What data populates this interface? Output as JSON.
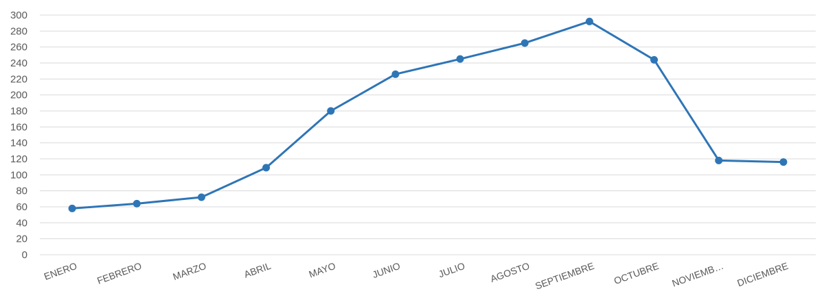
{
  "chart_data": {
    "type": "line",
    "title": "",
    "xlabel": "",
    "ylabel": "",
    "categories": [
      "ENERO",
      "FEBRERO",
      "MARZO",
      "ABRIL",
      "MAYO",
      "JUNIO",
      "JULIO",
      "AGOSTO",
      "SEPTIEMBRE",
      "OCTUBRE",
      "NOVIEMB…",
      "DICIEMBRE"
    ],
    "series": [
      {
        "values": [
          58,
          64,
          72,
          109,
          180,
          226,
          245,
          265,
          292,
          244,
          118,
          116
        ]
      }
    ],
    "ylim": [
      0,
      300
    ],
    "yticks": [
      0,
      20,
      40,
      60,
      80,
      100,
      120,
      140,
      160,
      180,
      200,
      220,
      240,
      260,
      280,
      300
    ],
    "grid": true,
    "legend": "none",
    "colors": {
      "line": "#2E75B6",
      "grid": "#D9D9D9",
      "text": "#595959"
    }
  }
}
